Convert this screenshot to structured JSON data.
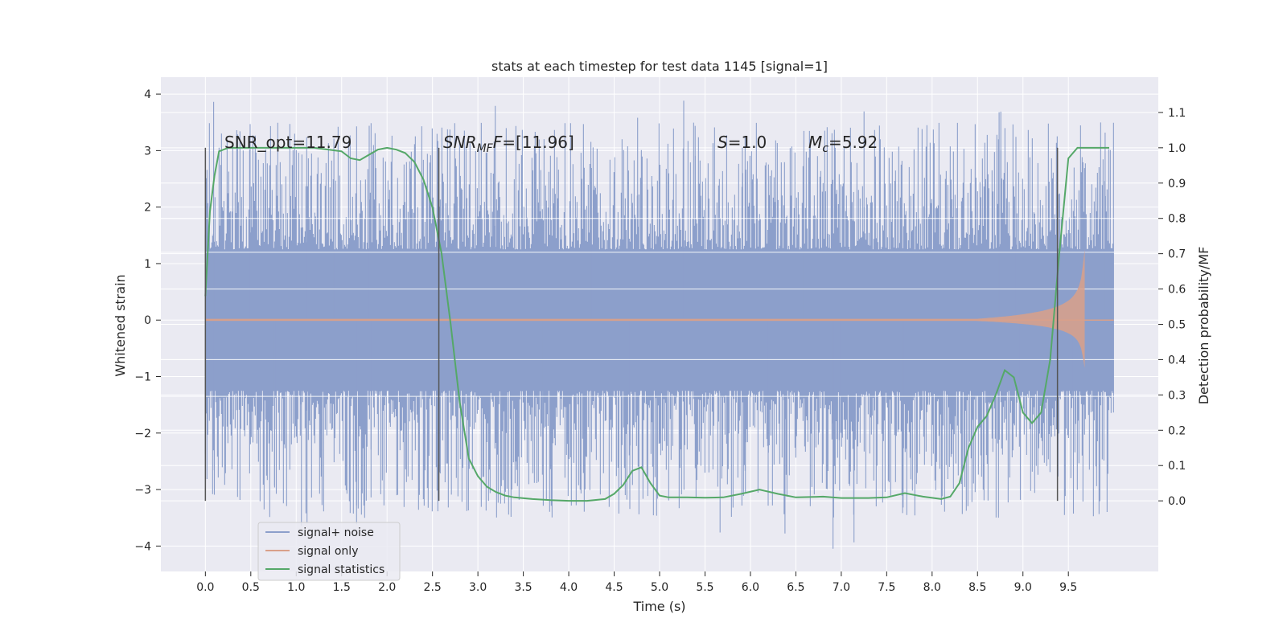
{
  "chart_data": {
    "type": "line",
    "title": "stats at each timestep for test data 1145 [signal=1]",
    "xlabel": "Time (s)",
    "ylabel_left": "Whitened strain",
    "ylabel_right": "Detection probability/MF",
    "xlim": [
      -0.49,
      10.49
    ],
    "ylim_left": [
      -4.45,
      4.3
    ],
    "ylim_right": [
      -0.2,
      1.2
    ],
    "x_ticks": [
      "0.0",
      "0.5",
      "1.0",
      "1.5",
      "2.0",
      "2.5",
      "3.0",
      "3.5",
      "4.0",
      "4.5",
      "5.0",
      "5.5",
      "6.0",
      "6.5",
      "7.0",
      "7.5",
      "8.0",
      "8.5",
      "9.0",
      "9.5"
    ],
    "x_tick_values": [
      0,
      0.5,
      1,
      1.5,
      2,
      2.5,
      3,
      3.5,
      4,
      4.5,
      5,
      5.5,
      6,
      6.5,
      7,
      7.5,
      8,
      8.5,
      9,
      9.5
    ],
    "y_left_ticks": [
      "−4",
      "−3",
      "−2",
      "−1",
      "0",
      "1",
      "2",
      "3",
      "4"
    ],
    "y_left_tick_values": [
      -4,
      -3,
      -2,
      -1,
      0,
      1,
      2,
      3,
      4
    ],
    "y_right_ticks": [
      "0.0",
      "0.1",
      "0.2",
      "0.3",
      "0.4",
      "0.5",
      "0.6",
      "0.7",
      "0.8",
      "0.9",
      "1.0",
      "1.1"
    ],
    "y_right_tick_values": [
      0,
      0.1,
      0.2,
      0.3,
      0.4,
      0.5,
      0.6,
      0.7,
      0.8,
      0.9,
      1.0,
      1.1
    ],
    "grid": true,
    "legend_position": "lower-left",
    "annotations": {
      "snr_opt": "SNR_opt=11.79",
      "snr_mf_sym": "SNR",
      "snr_mf_sub": "MF",
      "snr_mf_rest": "=[11.96]",
      "s_sym": "S",
      "s_rest": "=1.0",
      "mc_sym": "M",
      "mc_sub": "c",
      "mc_rest": "=5.92"
    },
    "vertical_markers": [
      {
        "x": 0.0,
        "ylim_left": [
          -3.2,
          3.05
        ]
      },
      {
        "x": 2.57,
        "ylim_left": [
          -3.2,
          3.05
        ]
      },
      {
        "x": 9.38,
        "ylim_left": [
          -3.2,
          3.05
        ]
      }
    ],
    "series": [
      {
        "name": "signal+ noise",
        "color": "#8c9fcb",
        "axis": "left",
        "x_range": [
          0,
          10.0
        ],
        "core_amplitude": 1.25,
        "envelope_amplitude": 3.1,
        "extrema_max": 3.9,
        "extrema_min": -4.05
      },
      {
        "name": "signal only",
        "color": "#d9a08a",
        "axis": "left",
        "x_range": [
          0,
          9.7
        ],
        "chirp_peak_time": 9.68,
        "peak_amplitude_plus": 1.55,
        "peak_amplitude_minus": -1.05
      },
      {
        "name": "signal statistics",
        "color": "#55a868",
        "axis": "right",
        "x": [
          0.0,
          0.05,
          0.1,
          0.15,
          0.25,
          0.4,
          0.6,
          0.8,
          1.0,
          1.2,
          1.35,
          1.5,
          1.6,
          1.7,
          1.8,
          1.9,
          2.0,
          2.1,
          2.2,
          2.3,
          2.4,
          2.5,
          2.6,
          2.7,
          2.8,
          2.9,
          3.0,
          3.1,
          3.2,
          3.3,
          3.4,
          3.6,
          3.8,
          4.0,
          4.2,
          4.4,
          4.5,
          4.6,
          4.7,
          4.8,
          4.9,
          5.0,
          5.1,
          5.3,
          5.5,
          5.7,
          5.9,
          6.1,
          6.3,
          6.5,
          6.8,
          7.0,
          7.3,
          7.5,
          7.7,
          7.9,
          8.1,
          8.2,
          8.3,
          8.4,
          8.5,
          8.6,
          8.7,
          8.8,
          8.9,
          9.0,
          9.1,
          9.2,
          9.3,
          9.4,
          9.5,
          9.6,
          9.8,
          9.95
        ],
        "values": [
          0.58,
          0.82,
          0.92,
          0.99,
          1.0,
          1.0,
          1.0,
          1.0,
          1.0,
          1.0,
          0.995,
          0.99,
          0.97,
          0.965,
          0.98,
          0.995,
          1.0,
          0.995,
          0.985,
          0.96,
          0.91,
          0.83,
          0.7,
          0.5,
          0.28,
          0.12,
          0.07,
          0.04,
          0.025,
          0.015,
          0.01,
          0.005,
          0.002,
          0.0,
          0.0,
          0.005,
          0.02,
          0.045,
          0.085,
          0.095,
          0.05,
          0.015,
          0.01,
          0.01,
          0.009,
          0.01,
          0.02,
          0.032,
          0.02,
          0.01,
          0.012,
          0.008,
          0.008,
          0.01,
          0.022,
          0.012,
          0.005,
          0.012,
          0.05,
          0.15,
          0.21,
          0.24,
          0.3,
          0.37,
          0.35,
          0.25,
          0.22,
          0.25,
          0.4,
          0.7,
          0.97,
          1.0,
          1.0,
          1.0
        ]
      }
    ]
  }
}
